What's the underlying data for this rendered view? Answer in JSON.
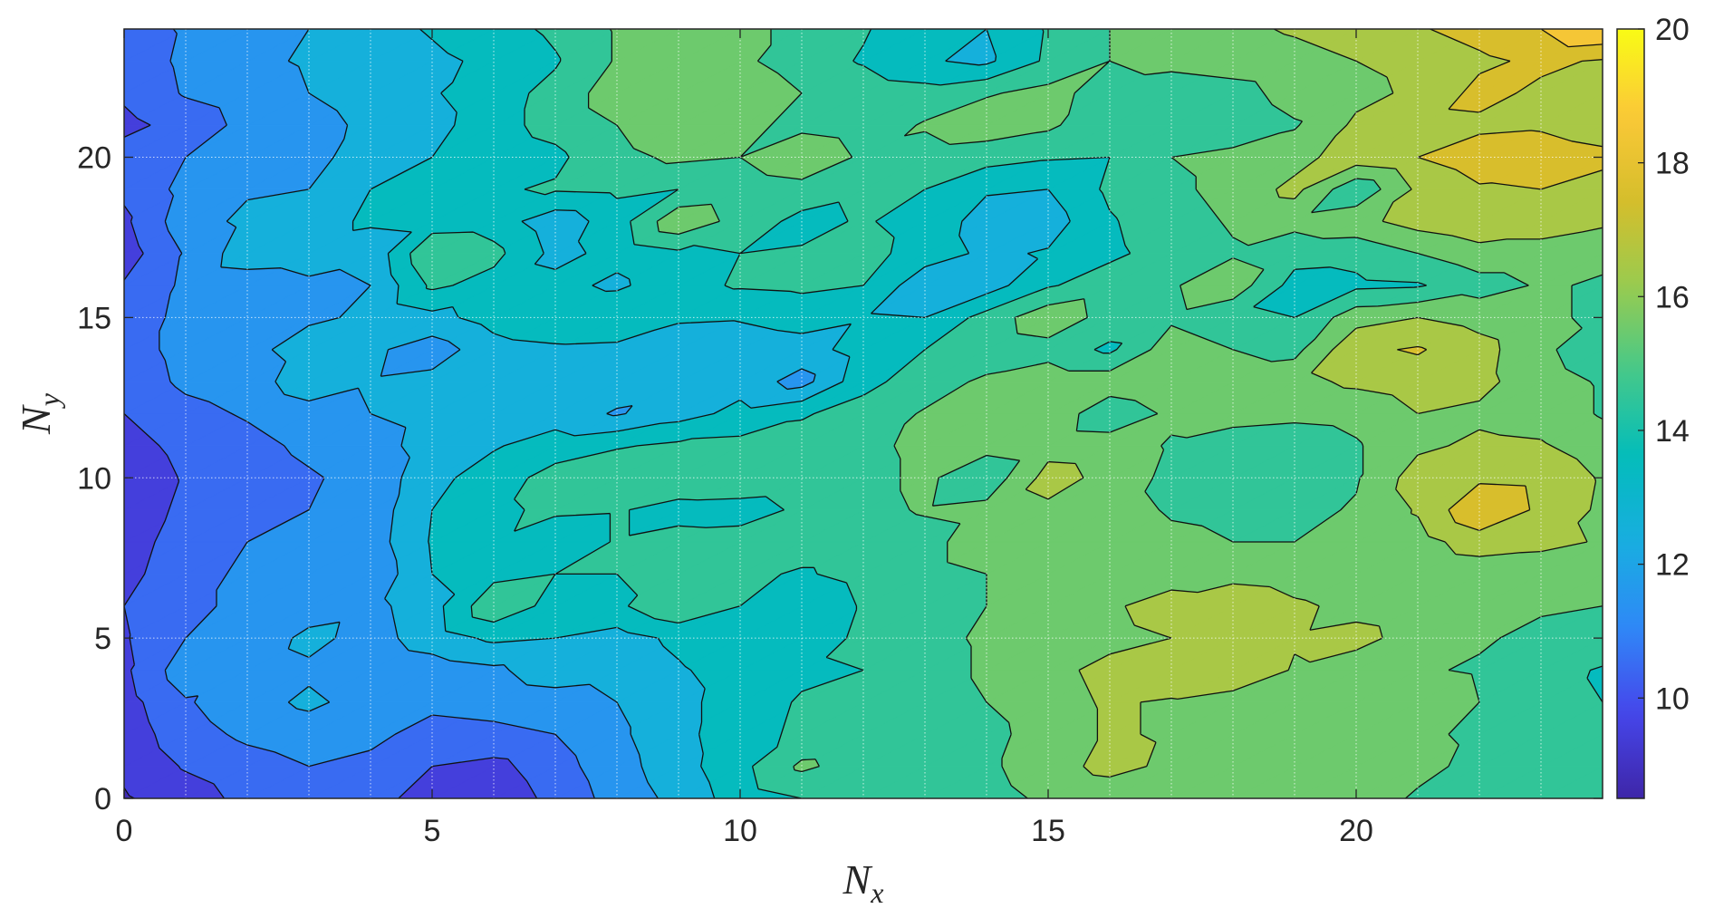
{
  "chart_data": {
    "type": "heatmap",
    "subtype": "filled-contour",
    "title": "",
    "xlabel": "N",
    "xlabel_subscript": "x",
    "ylabel": "N",
    "ylabel_subscript": "y",
    "xlim": [
      0,
      24
    ],
    "ylim": [
      0,
      24
    ],
    "x_ticks": [
      0,
      5,
      10,
      15,
      20
    ],
    "y_ticks": [
      0,
      5,
      10,
      15,
      20
    ],
    "colorbar": {
      "colormap": "parula",
      "range": [
        8.5,
        20
      ],
      "ticks": [
        10,
        12,
        14,
        16,
        18,
        20
      ],
      "colormap_stops": [
        "#3e26a8",
        "#4646eb",
        "#2f88f7",
        "#18aee0",
        "#03bcbb",
        "#45c989",
        "#99cb4f",
        "#d6be2b",
        "#fbc838",
        "#f9fb15"
      ]
    },
    "contour_levels": [
      9,
      10,
      11,
      12,
      13,
      14,
      15,
      16,
      17,
      18,
      19
    ],
    "grid": true,
    "grid_style": "dotted-white",
    "x": [
      0,
      1,
      2,
      3,
      4,
      5,
      6,
      7,
      8,
      9,
      10,
      11,
      12,
      13,
      14,
      15,
      16,
      17,
      18,
      19,
      20,
      21,
      22,
      23,
      24
    ],
    "y": [
      0,
      1,
      2,
      3,
      4,
      5,
      6,
      7,
      8,
      9,
      10,
      11,
      12,
      13,
      14,
      15,
      16,
      17,
      18,
      19,
      20,
      21,
      22,
      23,
      24
    ],
    "z": [
      [
        8.9,
        9.5,
        10.3,
        10.2,
        10.5,
        9.4,
        9.3,
        10.3,
        11.4,
        12.3,
        13.5,
        14.0,
        14.1,
        14.2,
        14.6,
        15.2,
        15.4,
        15.3,
        15.5,
        15.6,
        15.4,
        14.9,
        14.6,
        14.4,
        14.3
      ],
      [
        9.2,
        10.1,
        10.6,
        11.0,
        10.8,
        10.0,
        9.7,
        10.6,
        11.6,
        12.6,
        13.7,
        15.2,
        14.5,
        14.4,
        14.8,
        15.6,
        16.3,
        15.8,
        15.7,
        15.8,
        15.6,
        15.2,
        14.8,
        14.6,
        14.5
      ],
      [
        9.4,
        10.6,
        11.2,
        11.5,
        11.2,
        10.7,
        10.8,
        11.0,
        11.8,
        12.7,
        13.6,
        14.2,
        14.3,
        14.8,
        14.6,
        15.6,
        16.1,
        15.9,
        15.6,
        15.7,
        15.2,
        15.1,
        14.9,
        14.9,
        14.7
      ],
      [
        9.6,
        10.9,
        11.6,
        12.2,
        11.6,
        11.2,
        11.3,
        11.5,
        12.0,
        12.7,
        13.5,
        14.1,
        14.4,
        14.7,
        15.0,
        15.7,
        16.1,
        15.9,
        15.5,
        15.6,
        15.1,
        15.7,
        15.0,
        14.3,
        14.0
      ],
      [
        9.8,
        11.6,
        11.4,
        11.8,
        11.2,
        11.5,
        11.8,
        12.6,
        12.4,
        12.9,
        13.4,
        13.8,
        14.0,
        14.7,
        15.1,
        15.8,
        16.2,
        16.7,
        16.9,
        15.9,
        15.5,
        15.1,
        14.9,
        14.4,
        13.9
      ],
      [
        9.9,
        11.0,
        11.2,
        12.3,
        11.6,
        12.5,
        13.2,
        13.0,
        12.6,
        13.2,
        13.8,
        13.2,
        14.3,
        14.8,
        15.1,
        15.6,
        15.8,
        16.0,
        16.3,
        16.1,
        16.3,
        15.6,
        15.1,
        14.8,
        14.7
      ],
      [
        10.0,
        10.9,
        11.1,
        11.4,
        11.7,
        12.6,
        14.8,
        13.6,
        13.8,
        14.9,
        14.0,
        13.2,
        14.1,
        14.6,
        15.0,
        15.5,
        15.9,
        16.3,
        16.9,
        16.2,
        15.7,
        15.5,
        15.3,
        15.1,
        15.0
      ],
      [
        9.6,
        10.8,
        11.1,
        11.8,
        11.2,
        13.0,
        13.7,
        14.0,
        14.0,
        14.4,
        14.2,
        13.9,
        14.3,
        14.6,
        15.0,
        15.6,
        15.8,
        15.7,
        15.6,
        15.4,
        15.1,
        15.2,
        15.4,
        15.3,
        15.6
      ],
      [
        9.4,
        10.6,
        11.0,
        11.2,
        11.5,
        13.1,
        13.9,
        13.2,
        14.1,
        14.4,
        14.5,
        14.4,
        14.4,
        14.6,
        15.7,
        15.6,
        15.7,
        15.2,
        15.0,
        15.0,
        15.2,
        15.6,
        16.5,
        16.3,
        15.9
      ],
      [
        9.2,
        10.3,
        10.7,
        11.0,
        11.4,
        13.0,
        13.8,
        14.2,
        14.1,
        13.6,
        13.5,
        14.2,
        14.7,
        15.1,
        15.3,
        15.8,
        15.4,
        14.9,
        14.8,
        14.7,
        15.1,
        16.1,
        17.9,
        16.8,
        15.8
      ],
      [
        9.3,
        10.1,
        10.5,
        10.9,
        11.3,
        12.7,
        13.5,
        14.4,
        14.8,
        14.8,
        14.9,
        14.7,
        14.7,
        15.2,
        14.3,
        16.4,
        15.7,
        14.7,
        14.2,
        14.1,
        14.9,
        16.5,
        16.8,
        16.7,
        15.9
      ],
      [
        9.6,
        10.3,
        10.7,
        11.2,
        11.6,
        12.4,
        12.9,
        13.5,
        13.9,
        14.2,
        14.3,
        14.4,
        14.8,
        15.2,
        15.3,
        15.6,
        15.5,
        14.9,
        14.6,
        14.5,
        14.9,
        15.8,
        16.2,
        16.1,
        15.5
      ],
      [
        10.0,
        10.7,
        11.1,
        11.6,
        12.0,
        12.3,
        12.5,
        12.5,
        11.9,
        12.6,
        13.3,
        13.9,
        14.4,
        15.1,
        15.5,
        15.7,
        14.3,
        15.2,
        15.3,
        15.2,
        15.3,
        16.0,
        15.8,
        15.6,
        14.9
      ],
      [
        10.4,
        11.2,
        11.5,
        12.6,
        12.1,
        12.3,
        12.4,
        12.3,
        12.5,
        12.3,
        12.6,
        11.6,
        13.7,
        14.5,
        15.2,
        15.6,
        15.6,
        16.0,
        15.5,
        15.7,
        16.2,
        16.5,
        16.3,
        15.4,
        14.9
      ],
      [
        10.6,
        11.3,
        11.8,
        12.3,
        12.2,
        11.5,
        12.6,
        12.8,
        12.7,
        12.1,
        12.4,
        12.6,
        13.4,
        14.0,
        14.3,
        14.6,
        13.8,
        15.6,
        15.0,
        14.7,
        16.8,
        17.1,
        16.4,
        15.2,
        14.4
      ],
      [
        10.4,
        11.3,
        11.6,
        11.9,
        12.1,
        12.7,
        13.4,
        13.9,
        14.0,
        13.2,
        13.1,
        13.4,
        13.1,
        13.0,
        14.4,
        15.7,
        14.6,
        14.8,
        14.2,
        14.0,
        15.6,
        16.0,
        15.6,
        15.1,
        14.9
      ],
      [
        10.1,
        11.2,
        11.4,
        11.8,
        12.0,
        14.2,
        13.6,
        13.3,
        12.8,
        13.7,
        14.1,
        14.2,
        14.0,
        12.3,
        12.5,
        13.9,
        14.5,
        14.9,
        15.6,
        13.6,
        13.8,
        13.9,
        14.6,
        15.1,
        14.9
      ],
      [
        9.5,
        11.1,
        12.6,
        12.5,
        12.2,
        15.0,
        14.3,
        12.7,
        13.3,
        13.8,
        14.0,
        14.1,
        14.4,
        13.5,
        12.8,
        13.1,
        13.8,
        14.4,
        14.9,
        14.4,
        14.3,
        15.0,
        15.6,
        15.6,
        15.2
      ],
      [
        9.8,
        11.6,
        12.2,
        12.5,
        13.2,
        13.4,
        13.5,
        12.4,
        13.5,
        15.8,
        14.6,
        13.7,
        14.1,
        13.6,
        12.6,
        12.5,
        13.9,
        14.6,
        15.1,
        15.3,
        15.7,
        16.4,
        16.8,
        16.5,
        16.2
      ],
      [
        10.2,
        11.3,
        11.9,
        12.0,
        13.0,
        13.6,
        13.9,
        14.1,
        14.2,
        14.0,
        14.3,
        14.6,
        14.2,
        14.0,
        13.1,
        13.0,
        14.2,
        14.8,
        15.3,
        16.3,
        14.2,
        16.2,
        16.9,
        17.0,
        16.7
      ],
      [
        10.5,
        11.0,
        11.2,
        11.6,
        12.6,
        13.0,
        13.5,
        13.8,
        14.7,
        15.2,
        15.0,
        15.9,
        14.8,
        14.6,
        14.4,
        14.1,
        14.0,
        15.0,
        15.3,
        15.6,
        16.6,
        17.0,
        17.5,
        17.4,
        17.2
      ],
      [
        9.7,
        10.4,
        11.3,
        11.5,
        12.3,
        12.6,
        13.7,
        14.3,
        15.0,
        15.8,
        15.3,
        14.7,
        14.4,
        15.1,
        15.6,
        15.2,
        14.2,
        14.1,
        14.3,
        14.9,
        16.2,
        16.7,
        16.8,
        16.9,
        16.6
      ],
      [
        10.2,
        11.1,
        11.5,
        12.0,
        12.6,
        12.9,
        13.6,
        14.3,
        15.6,
        15.9,
        15.8,
        15.0,
        14.6,
        14.4,
        14.9,
        15.3,
        14.6,
        14.4,
        14.6,
        15.4,
        15.7,
        16.2,
        17.3,
        16.8,
        16.3
      ],
      [
        10.4,
        11.2,
        11.8,
        12.1,
        12.3,
        12.8,
        13.2,
        13.9,
        15.1,
        15.6,
        15.2,
        14.5,
        13.9,
        13.1,
        12.8,
        14.2,
        15.0,
        15.3,
        15.5,
        15.7,
        16.0,
        16.3,
        16.8,
        17.2,
        16.9
      ],
      [
        10.6,
        11.1,
        11.5,
        12.0,
        12.6,
        13.1,
        13.6,
        14.2,
        15.1,
        15.4,
        15.2,
        14.8,
        14.1,
        13.3,
        13.0,
        14.1,
        15.0,
        15.5,
        15.8,
        16.1,
        16.4,
        16.9,
        17.4,
        18.0,
        19.0
      ]
    ]
  }
}
